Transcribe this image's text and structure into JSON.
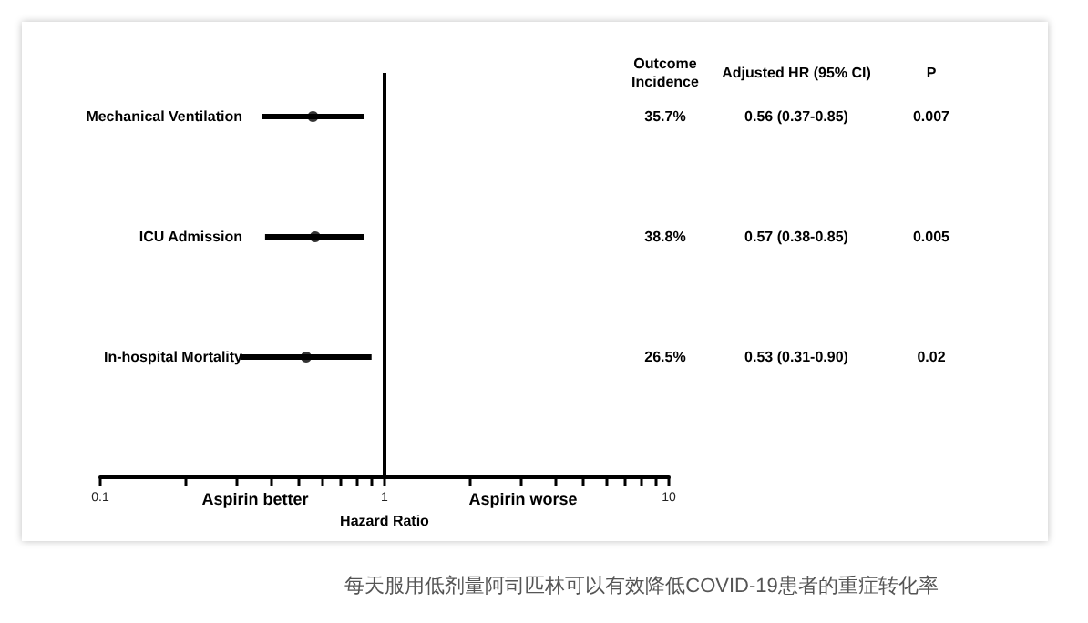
{
  "chart_data": {
    "type": "scatter",
    "orientation": "horizontal",
    "categories": [
      "Mechanical Ventilation",
      "ICU Admission",
      "In-hospital Mortality"
    ],
    "values": [
      0.56,
      0.57,
      0.53
    ],
    "errors": [
      [
        0.37,
        0.85
      ],
      [
        0.38,
        0.85
      ],
      [
        0.31,
        0.9
      ]
    ],
    "color": "#000000",
    "marker": "circle",
    "xlabel": "Hazard Ratio",
    "log": "x",
    "xlim": [
      0.1,
      10
    ],
    "xticks": [
      0.1,
      {
        "value": 0.2,
        "label": null
      },
      {
        "value": 0.3,
        "label": null
      },
      {
        "value": 0.4,
        "label": null
      },
      {
        "value": 0.5,
        "label": null
      },
      {
        "value": 0.6,
        "label": null
      },
      {
        "value": 0.7,
        "label": null
      },
      {
        "value": 0.8,
        "label": null
      },
      {
        "value": 0.9,
        "label": null
      },
      1,
      {
        "value": 2,
        "label": null
      },
      {
        "value": 3,
        "label": null
      },
      {
        "value": 4,
        "label": null
      },
      {
        "value": 5,
        "label": null
      },
      {
        "value": 6,
        "label": null
      },
      {
        "value": 7,
        "label": null
      },
      {
        "value": 8,
        "label": null
      },
      {
        "value": 9,
        "label": null
      },
      10
    ],
    "ref_lines": [
      {
        "axis": "x",
        "value": 1,
        "color": "#000000"
      }
    ],
    "grid": false,
    "annotations": [
      "Outcome\nIncidence",
      "Adjusted HR (95% CI)",
      "P",
      "35.7%",
      "0.56 (0.37-0.85)",
      "0.007",
      "38.8%",
      "0.57 (0.38-0.85)",
      "0.005",
      "26.5%",
      "0.53 (0.31-0.90)",
      "0.02",
      "Aspirin better",
      "Aspirin worse",
      "每天服用低剂量阿司匹林可以有效降低COVID-19患者的重症转化率"
    ]
  }
}
